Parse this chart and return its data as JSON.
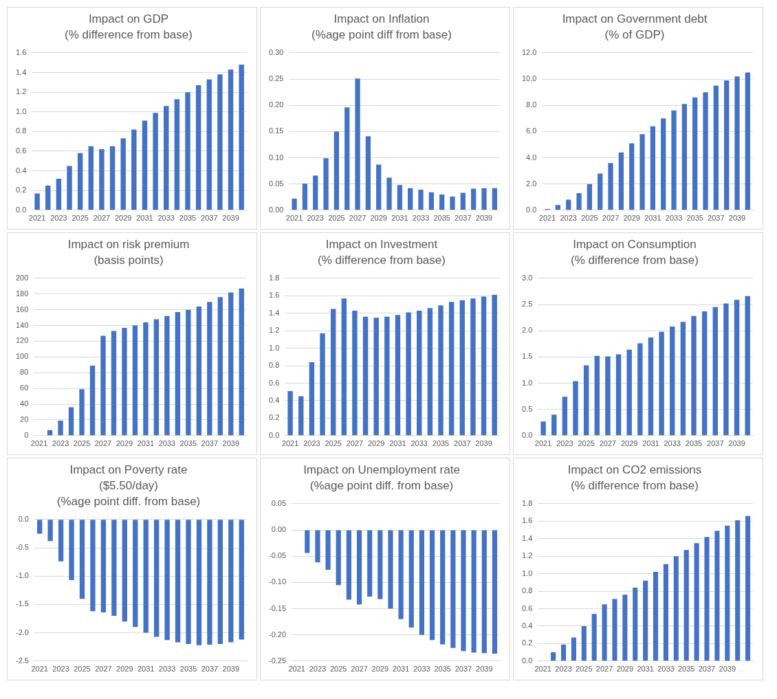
{
  "chart_data": [
    {
      "type": "bar",
      "title": "Impact on GDP\n(% difference from base)",
      "categories": [
        "2021",
        null,
        "2023",
        null,
        "2025",
        null,
        "2027",
        null,
        "2029",
        null,
        "2031",
        null,
        "2033",
        null,
        "2035",
        null,
        "2037",
        null,
        "2039",
        null
      ],
      "values": [
        0.17,
        0.25,
        0.32,
        0.45,
        0.58,
        0.65,
        0.62,
        0.65,
        0.73,
        0.82,
        0.91,
        0.99,
        1.06,
        1.13,
        1.2,
        1.27,
        1.33,
        1.38,
        1.43,
        1.48
      ],
      "color": "#4472c4",
      "ylim": [
        0,
        1.6
      ],
      "yticks": [
        {
          "value": 0,
          "label": "0.0"
        },
        {
          "value": 0.2,
          "label": "0.2"
        },
        {
          "value": 0.4,
          "label": "0.4"
        },
        {
          "value": 0.6,
          "label": "0.6"
        },
        {
          "value": 0.8,
          "label": "0.8"
        },
        {
          "value": 1,
          "label": "1.0"
        },
        {
          "value": 1.2,
          "label": "1.2"
        },
        {
          "value": 1.4,
          "label": "1.4"
        },
        {
          "value": 1.6,
          "label": "1.6"
        }
      ],
      "grid": "y",
      "legend": false
    },
    {
      "type": "bar",
      "title": "Impact on Inflation\n(%age point diff from base)",
      "categories": [
        "2021",
        null,
        "2023",
        null,
        "2025",
        null,
        "2027",
        null,
        "2029",
        null,
        "2031",
        null,
        "2033",
        null,
        "2035",
        null,
        "2037",
        null,
        "2039",
        null
      ],
      "values": [
        0.022,
        0.051,
        0.066,
        0.099,
        0.15,
        0.196,
        0.251,
        0.141,
        0.087,
        0.062,
        0.048,
        0.042,
        0.039,
        0.034,
        0.03,
        0.026,
        0.033,
        0.041,
        0.042,
        0.042
      ],
      "color": "#4472c4",
      "ylim": [
        0,
        0.3
      ],
      "yticks": [
        {
          "value": 0,
          "label": "0.00"
        },
        {
          "value": 0.05,
          "label": "0.05"
        },
        {
          "value": 0.1,
          "label": "0.10"
        },
        {
          "value": 0.15,
          "label": "0.15"
        },
        {
          "value": 0.2,
          "label": "0.20"
        },
        {
          "value": 0.25,
          "label": "0.25"
        },
        {
          "value": 0.3,
          "label": "0.30"
        }
      ],
      "grid": "y",
      "legend": false
    },
    {
      "type": "bar",
      "title": "Impact on Government debt\n(% of GDP)",
      "categories": [
        "2021",
        null,
        "2023",
        null,
        "2025",
        null,
        "2027",
        null,
        "2029",
        null,
        "2031",
        null,
        "2033",
        null,
        "2035",
        null,
        "2037",
        null,
        "2039",
        null
      ],
      "values": [
        0.1,
        0.4,
        0.8,
        1.3,
        2.0,
        2.8,
        3.6,
        4.4,
        5.1,
        5.8,
        6.4,
        7.0,
        7.6,
        8.1,
        8.6,
        9.0,
        9.5,
        9.9,
        10.2,
        10.5
      ],
      "color": "#4472c4",
      "ylim": [
        0,
        12
      ],
      "yticks": [
        {
          "value": 0,
          "label": "0.0"
        },
        {
          "value": 2,
          "label": "2.0"
        },
        {
          "value": 4,
          "label": "4.0"
        },
        {
          "value": 6,
          "label": "6.0"
        },
        {
          "value": 8,
          "label": "8.0"
        },
        {
          "value": 10,
          "label": "10.0"
        },
        {
          "value": 12,
          "label": "12.0"
        }
      ],
      "grid": "y",
      "legend": false
    },
    {
      "type": "bar",
      "title": "Impact on risk premium\n(basis points)",
      "categories": [
        "2021",
        null,
        "2023",
        null,
        "2025",
        null,
        "2027",
        null,
        "2029",
        null,
        "2031",
        null,
        "2033",
        null,
        "2035",
        null,
        "2037",
        null,
        "2039",
        null
      ],
      "values": [
        0,
        7,
        19,
        36,
        59,
        89,
        127,
        133,
        137,
        140,
        144,
        148,
        152,
        157,
        160,
        164,
        170,
        176,
        182,
        187
      ],
      "color": "#4472c4",
      "ylim": [
        0,
        200
      ],
      "yticks": [
        0,
        20,
        40,
        60,
        80,
        100,
        120,
        140,
        160,
        180,
        200
      ],
      "grid": "y",
      "legend": false
    },
    {
      "type": "bar",
      "title": "Impact on Investment\n(% difference from base)",
      "categories": [
        "2021",
        null,
        "2023",
        null,
        "2025",
        null,
        "2027",
        null,
        "2029",
        null,
        "2031",
        null,
        "2033",
        null,
        "2035",
        null,
        "2037",
        null,
        "2039",
        null
      ],
      "values": [
        0.51,
        0.45,
        0.84,
        1.17,
        1.45,
        1.57,
        1.43,
        1.36,
        1.35,
        1.36,
        1.38,
        1.41,
        1.43,
        1.46,
        1.49,
        1.53,
        1.55,
        1.57,
        1.59,
        1.61
      ],
      "color": "#4472c4",
      "ylim": [
        0,
        1.8
      ],
      "yticks": [
        {
          "value": 0,
          "label": "0.0"
        },
        {
          "value": 0.2,
          "label": "0.2"
        },
        {
          "value": 0.4,
          "label": "0.4"
        },
        {
          "value": 0.6,
          "label": "0.6"
        },
        {
          "value": 0.8,
          "label": "0.8"
        },
        {
          "value": 1,
          "label": "1.0"
        },
        {
          "value": 1.2,
          "label": "1.2"
        },
        {
          "value": 1.4,
          "label": "1.4"
        },
        {
          "value": 1.6,
          "label": "1.6"
        },
        {
          "value": 1.8,
          "label": "1.8"
        }
      ],
      "grid": "y",
      "legend": false
    },
    {
      "type": "bar",
      "title": "Impact on Consumption\n(% difference from base)",
      "categories": [
        "2021",
        null,
        "2023",
        null,
        "2025",
        null,
        "2027",
        null,
        "2029",
        null,
        "2031",
        null,
        "2033",
        null,
        "2035",
        null,
        "2037",
        null,
        "2039",
        null
      ],
      "values": [
        0.27,
        0.4,
        0.74,
        1.04,
        1.34,
        1.52,
        1.51,
        1.55,
        1.64,
        1.76,
        1.87,
        1.98,
        2.08,
        2.17,
        2.28,
        2.37,
        2.45,
        2.52,
        2.59,
        2.66
      ],
      "color": "#4472c4",
      "ylim": [
        0,
        3
      ],
      "yticks": [
        {
          "value": 0,
          "label": "0.0"
        },
        {
          "value": 0.5,
          "label": "0.5"
        },
        {
          "value": 1,
          "label": "1.0"
        },
        {
          "value": 1.5,
          "label": "1.5"
        },
        {
          "value": 2,
          "label": "2.0"
        },
        {
          "value": 2.5,
          "label": "2.5"
        },
        {
          "value": 3,
          "label": "3.0"
        }
      ],
      "grid": "y",
      "legend": false
    },
    {
      "type": "bar",
      "title": "Impact on Poverty rate\n($5.50/day)\n(%age point diff. from base)",
      "categories": [
        "2021",
        null,
        "2023",
        null,
        "2025",
        null,
        "2027",
        null,
        "2029",
        null,
        "2031",
        null,
        "2033",
        null,
        "2035",
        null,
        "2037",
        null,
        "2039",
        null
      ],
      "values": [
        -0.25,
        -0.38,
        -0.74,
        -1.07,
        -1.4,
        -1.62,
        -1.64,
        -1.7,
        -1.8,
        -1.9,
        -2.0,
        -2.07,
        -2.13,
        -2.17,
        -2.2,
        -2.22,
        -2.21,
        -2.2,
        -2.17,
        -2.12
      ],
      "color": "#4472c4",
      "ylim": [
        -2.5,
        0
      ],
      "yticks": [
        {
          "value": -2.5,
          "label": "-2.5"
        },
        {
          "value": -2,
          "label": "-2.0"
        },
        {
          "value": -1.5,
          "label": "-1.5"
        },
        {
          "value": -1,
          "label": "-1.0"
        },
        {
          "value": -0.5,
          "label": "-0.5"
        },
        {
          "value": 0,
          "label": "0.0"
        }
      ],
      "grid": "y",
      "legend": false
    },
    {
      "type": "bar",
      "title": "Impact on Unemployment rate\n(%age point diff. from base)",
      "categories": [
        "2021",
        null,
        "2023",
        null,
        "2025",
        null,
        "2027",
        null,
        "2029",
        null,
        "2031",
        null,
        "2033",
        null,
        "2035",
        null,
        "2037",
        null,
        "2039",
        null
      ],
      "values": [
        0,
        -0.044,
        -0.062,
        -0.076,
        -0.105,
        -0.133,
        -0.142,
        -0.127,
        -0.132,
        -0.15,
        -0.17,
        -0.186,
        -0.2,
        -0.21,
        -0.218,
        -0.225,
        -0.231,
        -0.234,
        -0.235,
        -0.236
      ],
      "color": "#4472c4",
      "ylim": [
        -0.25,
        0.05
      ],
      "yticks": [
        {
          "value": -0.25,
          "label": "-0.25"
        },
        {
          "value": -0.2,
          "label": "-0.20"
        },
        {
          "value": -0.15,
          "label": "-0.15"
        },
        {
          "value": -0.1,
          "label": "-0.10"
        },
        {
          "value": -0.05,
          "label": "-0.05"
        },
        {
          "value": 0,
          "label": "0.00"
        },
        {
          "value": 0.05,
          "label": "0.05"
        }
      ],
      "grid": "y",
      "legend": false
    },
    {
      "type": "bar",
      "title": "Impact on CO2 emissions\n(% difference from base)",
      "categories": [
        "2021",
        null,
        "2023",
        null,
        "2025",
        null,
        "2027",
        null,
        "2029",
        null,
        "2031",
        null,
        "2033",
        null,
        "2035",
        null,
        "2037",
        null,
        "2039",
        null,
        null
      ],
      "values": [
        0,
        0.1,
        0.19,
        0.27,
        0.4,
        0.54,
        0.65,
        0.71,
        0.76,
        0.84,
        0.92,
        1.02,
        1.11,
        1.2,
        1.27,
        1.35,
        1.42,
        1.49,
        1.55,
        1.61,
        1.66
      ],
      "color": "#4472c4",
      "ylim": [
        0,
        1.8
      ],
      "yticks": [
        {
          "value": 0,
          "label": "0.0"
        },
        {
          "value": 0.2,
          "label": "0.2"
        },
        {
          "value": 0.4,
          "label": "0.4"
        },
        {
          "value": 0.6,
          "label": "0.6"
        },
        {
          "value": 0.8,
          "label": "0.8"
        },
        {
          "value": 1,
          "label": "1.0"
        },
        {
          "value": 1.2,
          "label": "1.2"
        },
        {
          "value": 1.4,
          "label": "1.4"
        },
        {
          "value": 1.6,
          "label": "1.6"
        },
        {
          "value": 1.8,
          "label": "1.8"
        }
      ],
      "grid": "y",
      "legend": false
    }
  ]
}
